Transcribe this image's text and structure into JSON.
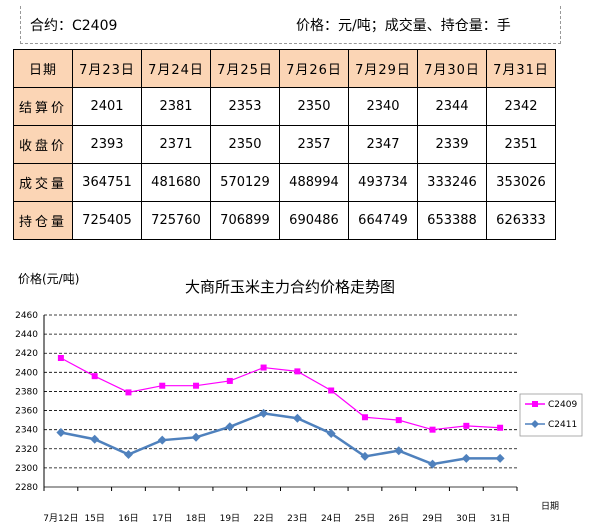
{
  "header": {
    "contract": "合约：C2409",
    "units": "价格：元/吨；成交量、持仓量：手"
  },
  "table": {
    "corner": "日期",
    "dates": [
      "7月23日",
      "7月24日",
      "7月25日",
      "7月26日",
      "7月29日",
      "7月30日",
      "7月31日"
    ],
    "rows": [
      {
        "label": "结算价",
        "values": [
          "2401",
          "2381",
          "2353",
          "2350",
          "2340",
          "2344",
          "2342"
        ]
      },
      {
        "label": "收盘价",
        "values": [
          "2393",
          "2371",
          "2350",
          "2357",
          "2347",
          "2339",
          "2351"
        ]
      },
      {
        "label": "成交量",
        "values": [
          "364751",
          "481680",
          "570129",
          "488994",
          "493734",
          "333246",
          "353026"
        ]
      },
      {
        "label": "持仓量",
        "values": [
          "725405",
          "725760",
          "706899",
          "690486",
          "664749",
          "653388",
          "626333"
        ]
      }
    ]
  },
  "chart_data": {
    "type": "line",
    "title": "大商所玉米主力合约价格走势图",
    "ylabel": "价格(元/吨)",
    "xlabel": "日期",
    "ylim": [
      2280,
      2460
    ],
    "yticks": [
      2280,
      2300,
      2320,
      2340,
      2360,
      2380,
      2400,
      2420,
      2440,
      2460
    ],
    "categories": [
      "7月12日",
      "15日",
      "16日",
      "17日",
      "18日",
      "19日",
      "22日",
      "23日",
      "24日",
      "25日",
      "26日",
      "29日",
      "30日",
      "31日"
    ],
    "grid": true,
    "legend_position": "right",
    "series": [
      {
        "name": "C2409",
        "color": "#ff00ff",
        "marker": "square",
        "values": [
          2415,
          2396,
          2379,
          2386,
          2386,
          2391,
          2405,
          2401,
          2381,
          2353,
          2350,
          2340,
          2344,
          2342
        ]
      },
      {
        "name": "C2411",
        "color": "#4f81bd",
        "marker": "diamond",
        "values": [
          2337,
          2330,
          2314,
          2329,
          2332,
          2343,
          2357,
          2352,
          2336,
          2312,
          2318,
          2304,
          2310,
          2310
        ]
      }
    ]
  }
}
